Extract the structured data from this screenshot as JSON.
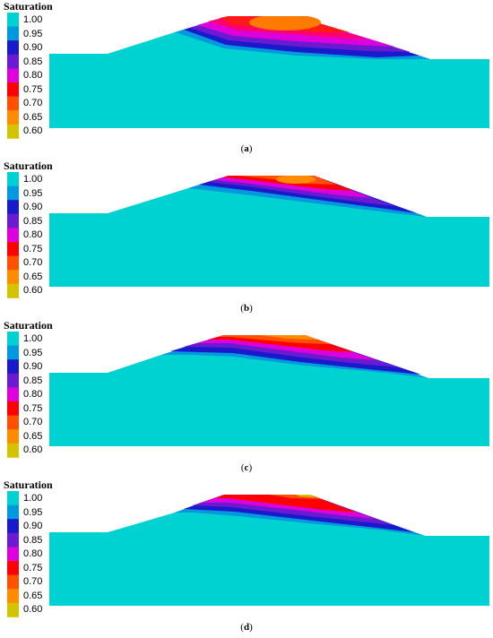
{
  "legend": {
    "title": "Saturation",
    "labels": [
      "1.00",
      "0.95",
      "0.90",
      "0.85",
      "0.80",
      "0.75",
      "0.70",
      "0.65",
      "0.60"
    ],
    "colors": [
      "#00d2d2",
      "#0099dd",
      "#1a1acc",
      "#6a1ad0",
      "#dd00dd",
      "#ff0000",
      "#ff5000",
      "#ff8c00",
      "#d4c400"
    ]
  },
  "panels": [
    {
      "caption_open": "(",
      "caption_letter": "a",
      "caption_close": ")"
    },
    {
      "caption_open": "(",
      "caption_letter": "b",
      "caption_close": ")"
    },
    {
      "caption_open": "(",
      "caption_letter": "c",
      "caption_close": ")"
    },
    {
      "caption_open": "(",
      "caption_letter": "d",
      "caption_close": ")"
    }
  ]
}
